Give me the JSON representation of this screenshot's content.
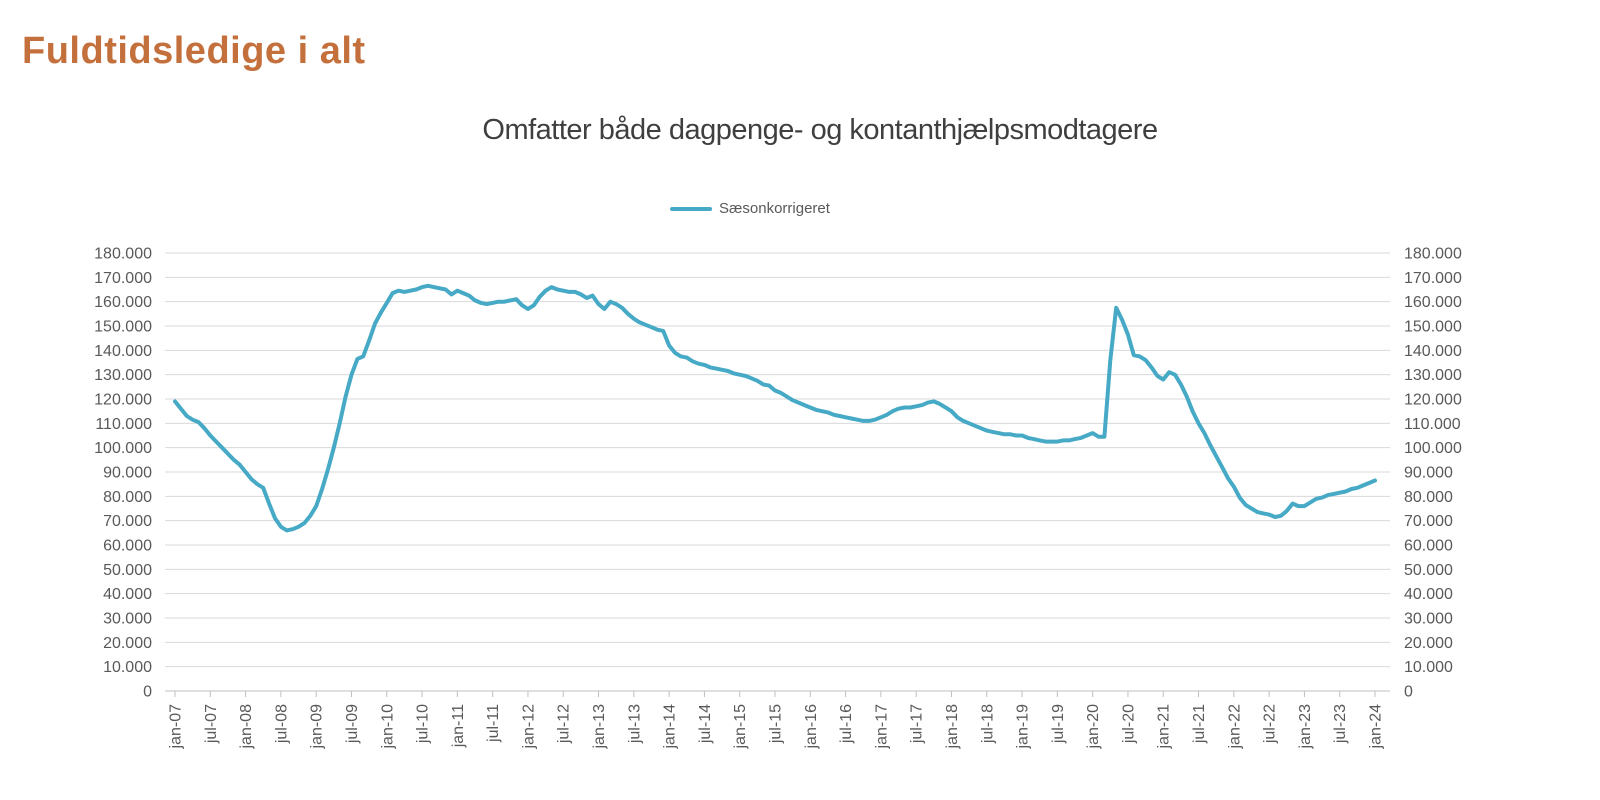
{
  "page": {
    "title": "Fuldtidsledige i alt"
  },
  "legend": {
    "items": [
      {
        "label": "Sæsonkorrigeret",
        "color": "#46a9c5"
      }
    ]
  },
  "colors": {
    "title": "#c4703c",
    "subtitle": "#3f3f3f",
    "axis_text": "#595959",
    "gridline": "#d9d9d9",
    "axis_line": "#bfbfbf",
    "series": "#46a9c5"
  },
  "chart_data": {
    "type": "line",
    "title": "Omfatter både dagpenge- og kontanthjælpsmodtagere",
    "xlabel": "",
    "ylabel": "",
    "ylim": [
      0,
      180000
    ],
    "ytick_step": 10000,
    "y_label_format": "danish-thousands-dot",
    "y_axis_labels": "both-sides",
    "grid": "horizontal",
    "legend_position": "top-center",
    "x_start": "jan-07",
    "x_interval": "monthly",
    "x_tick_every_months": 6,
    "x_tick_labels": [
      "jan-07",
      "jul-07",
      "jan-08",
      "jul-08",
      "jan-09",
      "jul-09",
      "jan-10",
      "jul-10",
      "jan-11",
      "jul-11",
      "jan-12",
      "jul-12",
      "jan-13",
      "jul-13",
      "jan-14",
      "jul-14",
      "jan-15",
      "jul-15",
      "jan-16",
      "jul-16",
      "jan-17",
      "jul-17",
      "jan-18",
      "jul-18",
      "jan-19",
      "jul-19",
      "jan-20",
      "jul-20",
      "jan-21",
      "jul-21",
      "jan-22",
      "jul-22",
      "jan-23",
      "jul-23",
      "jan-24"
    ],
    "series": [
      {
        "name": "Sæsonkorrigeret",
        "color": "#46a9c5",
        "values": [
          119000,
          116000,
          113000,
          111500,
          110500,
          108000,
          105000,
          102500,
          100000,
          97500,
          95000,
          93000,
          90000,
          87000,
          85000,
          83500,
          77000,
          71000,
          67500,
          66000,
          66500,
          67500,
          69000,
          72000,
          76000,
          83000,
          91000,
          100000,
          110000,
          121000,
          130000,
          136500,
          137500,
          144000,
          151000,
          155500,
          159500,
          163500,
          164500,
          164000,
          164500,
          165000,
          166000,
          166500,
          166000,
          165500,
          165000,
          163000,
          164500,
          163500,
          162500,
          160500,
          159500,
          159000,
          159500,
          160000,
          160000,
          160500,
          161000,
          158500,
          157000,
          158500,
          162000,
          164500,
          166000,
          165000,
          164500,
          164000,
          164000,
          163000,
          161500,
          162500,
          159000,
          157000,
          160000,
          159000,
          157500,
          155000,
          153000,
          151500,
          150500,
          149500,
          148500,
          148000,
          142000,
          139000,
          137500,
          137000,
          135500,
          134500,
          134000,
          133000,
          132500,
          132000,
          131500,
          130500,
          130000,
          129500,
          128500,
          127500,
          126000,
          125500,
          123500,
          122500,
          121000,
          119500,
          118500,
          117500,
          116500,
          115500,
          115000,
          114500,
          113500,
          113000,
          112500,
          112000,
          111500,
          111000,
          111000,
          111500,
          112500,
          113500,
          115000,
          116000,
          116500,
          116500,
          117000,
          117500,
          118500,
          119000,
          118000,
          116500,
          115000,
          112500,
          111000,
          110000,
          109000,
          108000,
          107000,
          106500,
          106000,
          105500,
          105500,
          105000,
          105000,
          104000,
          103500,
          103000,
          102500,
          102500,
          102500,
          103000,
          103000,
          103500,
          104000,
          105000,
          106000,
          104500,
          104500,
          136000,
          157500,
          152500,
          146500,
          138000,
          137500,
          136000,
          133000,
          129500,
          128000,
          131000,
          130000,
          126000,
          121000,
          115000,
          110000,
          106000,
          101000,
          96500,
          92000,
          87500,
          84000,
          79500,
          76500,
          75000,
          73500,
          73000,
          72500,
          71500,
          72000,
          74000,
          77000,
          76000,
          76000,
          77500,
          79000,
          79500,
          80500,
          81000,
          81500,
          82000,
          83000,
          83500,
          84500,
          85500,
          86500
        ]
      }
    ]
  }
}
